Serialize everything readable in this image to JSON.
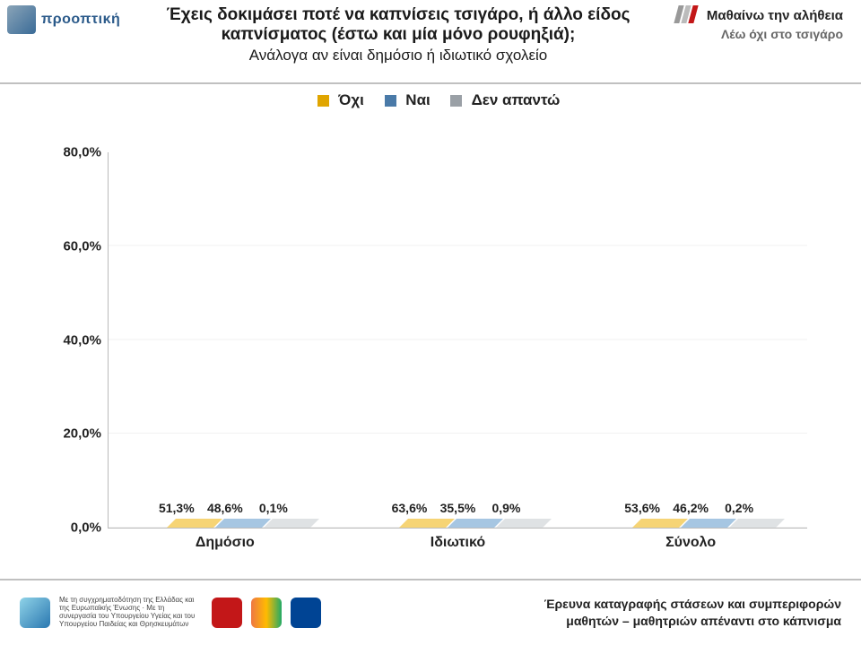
{
  "header": {
    "left_logo_text": "προοπτική",
    "title_line1": "Έχεις δοκιμάσει ποτέ να καπνίσεις τσιγάρο, ή άλλο είδος",
    "title_line2": "καπνίσματος (έστω και μία μόνο ρουφηξιά);",
    "title_line3": "Ανάλογα αν είναι δημόσιο ή ιδιωτικό σχολείο",
    "right_line1": "Μαθαίνω την αλήθεια",
    "right_line2": "Λέω όχι στο τσιγάρο"
  },
  "legend": {
    "ochi": "Όχι",
    "nai": "Ναι",
    "den": "Δεν απαντώ"
  },
  "chart": {
    "type": "bar",
    "ymax": 80,
    "ytick_step": 20,
    "yticks": [
      "0,0%",
      "20,0%",
      "40,0%",
      "60,0%",
      "80,0%"
    ],
    "categories": [
      "Δημόσιο",
      "Ιδιωτικό",
      "Σύνολο"
    ],
    "series": [
      {
        "key": "ochi",
        "color": "#e0a500"
      },
      {
        "key": "nai",
        "color": "#4a7aa8"
      },
      {
        "key": "den",
        "color": "#9aa0a6"
      }
    ],
    "groups": [
      {
        "cat": "Δημόσιο",
        "values": [
          {
            "label": "51,3%",
            "v": 51.3
          },
          {
            "label": "48,6%",
            "v": 48.6
          },
          {
            "label": "0,1%",
            "v": 0.1
          }
        ]
      },
      {
        "cat": "Ιδιωτικό",
        "values": [
          {
            "label": "63,6%",
            "v": 63.6
          },
          {
            "label": "35,5%",
            "v": 35.5
          },
          {
            "label": "0,9%",
            "v": 0.9
          }
        ]
      },
      {
        "cat": "Σύνολο",
        "values": [
          {
            "label": "53,6%",
            "v": 53.6
          },
          {
            "label": "46,2%",
            "v": 46.2
          },
          {
            "label": "0,2%",
            "v": 0.2
          }
        ]
      }
    ],
    "background_color": "#ffffff",
    "grid_color": "#dcdcdc",
    "label_fontsize": 14,
    "axis_fontsize": 15
  },
  "footer": {
    "tiny": "Με τη συγχρηματοδότηση της Ελλάδας και της Ευρωπαϊκής Ένωσης · Με τη συνεργασία του Υπουργείου Υγείας και του Υπουργείου Παιδείας και Θρησκευμάτων",
    "right1": "Έρευνα καταγραφής στάσεων και συμπεριφορών",
    "right2": "μαθητών – μαθητριών απέναντι στο κάπνισμα"
  }
}
